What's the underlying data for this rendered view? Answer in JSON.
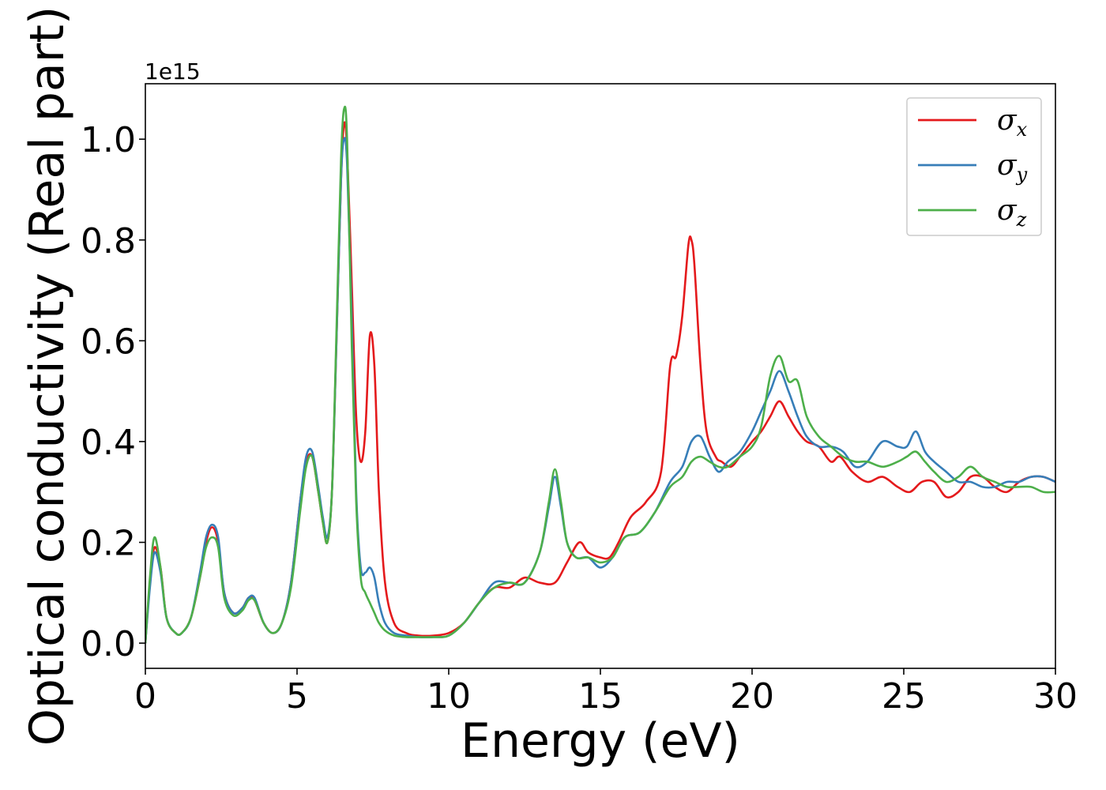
{
  "chart_data": {
    "type": "line",
    "xlabel": "Energy (eV)",
    "ylabel": "Optical conductivity (Real part)",
    "y_offset_label": "1e15",
    "xlim": [
      0,
      30
    ],
    "ylim": [
      -0.05,
      1.11
    ],
    "x_ticks": [
      0,
      5,
      10,
      15,
      20,
      25,
      30
    ],
    "y_ticks": [
      0.0,
      0.2,
      0.4,
      0.6,
      0.8,
      1.0
    ],
    "x_tick_labels": [
      "0",
      "5",
      "10",
      "15",
      "20",
      "25",
      "30"
    ],
    "y_tick_labels": [
      "0.0",
      "0.2",
      "0.4",
      "0.6",
      "0.8",
      "1.0"
    ],
    "grid": false,
    "legend_position": "top-right",
    "series": [
      {
        "name": "σx",
        "legend_symbol": "σ",
        "legend_subscript": "x",
        "color": "#e41a1c",
        "x": [
          0,
          0.15,
          0.3,
          0.5,
          0.7,
          1,
          1.2,
          1.5,
          1.8,
          2.0,
          2.2,
          2.4,
          2.6,
          2.9,
          3.2,
          3.4,
          3.6,
          3.9,
          4.2,
          4.5,
          4.8,
          5.1,
          5.3,
          5.5,
          5.7,
          5.85,
          6.0,
          6.15,
          6.3,
          6.45,
          6.55,
          6.65,
          6.8,
          6.95,
          7.1,
          7.25,
          7.4,
          7.55,
          7.7,
          7.9,
          8.2,
          8.6,
          9.0,
          9.5,
          10,
          10.5,
          11,
          11.5,
          12,
          12.5,
          13,
          13.5,
          13.9,
          14.3,
          14.6,
          15,
          15.3,
          15.6,
          16,
          16.5,
          17,
          17.3,
          17.5,
          17.7,
          17.9,
          18.0,
          18.1,
          18.3,
          18.5,
          18.8,
          19,
          19.3,
          19.6,
          20,
          20.3,
          20.6,
          20.9,
          21.2,
          21.5,
          21.8,
          22.2,
          22.6,
          22.9,
          23.3,
          23.8,
          24.3,
          24.8,
          25.2,
          25.6,
          26,
          26.4,
          26.8,
          27.2,
          27.6,
          28,
          28.4,
          28.8,
          29.2,
          29.6,
          30
        ],
        "y": [
          0,
          0.12,
          0.19,
          0.15,
          0.05,
          0.02,
          0.02,
          0.05,
          0.13,
          0.2,
          0.23,
          0.2,
          0.1,
          0.06,
          0.07,
          0.09,
          0.085,
          0.04,
          0.02,
          0.04,
          0.12,
          0.28,
          0.36,
          0.37,
          0.3,
          0.24,
          0.2,
          0.3,
          0.6,
          0.92,
          1.03,
          0.98,
          0.72,
          0.45,
          0.36,
          0.42,
          0.61,
          0.55,
          0.3,
          0.12,
          0.04,
          0.02,
          0.015,
          0.015,
          0.02,
          0.04,
          0.08,
          0.11,
          0.11,
          0.13,
          0.12,
          0.12,
          0.16,
          0.2,
          0.18,
          0.17,
          0.17,
          0.2,
          0.25,
          0.28,
          0.34,
          0.55,
          0.57,
          0.65,
          0.79,
          0.8,
          0.75,
          0.55,
          0.42,
          0.37,
          0.36,
          0.35,
          0.37,
          0.4,
          0.42,
          0.45,
          0.48,
          0.45,
          0.42,
          0.4,
          0.39,
          0.36,
          0.37,
          0.34,
          0.32,
          0.33,
          0.31,
          0.3,
          0.32,
          0.32,
          0.29,
          0.3,
          0.33,
          0.33,
          0.31,
          0.3,
          0.32,
          0.33,
          0.33,
          0.32
        ]
      },
      {
        "name": "σy",
        "legend_symbol": "σ",
        "legend_subscript": "y",
        "color": "#377eb8",
        "x": [
          0,
          0.15,
          0.3,
          0.5,
          0.7,
          1,
          1.2,
          1.5,
          1.8,
          2.0,
          2.2,
          2.4,
          2.6,
          2.9,
          3.2,
          3.4,
          3.6,
          3.9,
          4.2,
          4.5,
          4.8,
          5.1,
          5.3,
          5.5,
          5.7,
          5.85,
          6.0,
          6.15,
          6.3,
          6.45,
          6.55,
          6.65,
          6.8,
          6.95,
          7.1,
          7.25,
          7.4,
          7.55,
          7.7,
          7.9,
          8.2,
          8.6,
          9.0,
          9.5,
          10,
          10.5,
          11,
          11.5,
          12,
          12.5,
          13,
          13.3,
          13.5,
          13.7,
          13.9,
          14.2,
          14.6,
          15,
          15.4,
          15.8,
          16.3,
          16.8,
          17.3,
          17.7,
          18.0,
          18.3,
          18.6,
          18.9,
          19.2,
          19.6,
          20,
          20.3,
          20.6,
          20.9,
          21.2,
          21.5,
          21.8,
          22.2,
          22.6,
          23,
          23.4,
          23.8,
          24.3,
          24.8,
          25.1,
          25.4,
          25.7,
          26,
          26.4,
          26.8,
          27.2,
          27.6,
          28,
          28.4,
          28.8,
          29.2,
          29.6,
          30
        ],
        "y": [
          0,
          0.11,
          0.18,
          0.14,
          0.05,
          0.02,
          0.02,
          0.05,
          0.14,
          0.21,
          0.235,
          0.21,
          0.1,
          0.06,
          0.07,
          0.09,
          0.09,
          0.04,
          0.02,
          0.04,
          0.12,
          0.28,
          0.37,
          0.38,
          0.31,
          0.25,
          0.21,
          0.3,
          0.6,
          0.92,
          1.0,
          0.95,
          0.65,
          0.3,
          0.15,
          0.14,
          0.15,
          0.13,
          0.08,
          0.04,
          0.02,
          0.015,
          0.012,
          0.012,
          0.015,
          0.04,
          0.08,
          0.12,
          0.12,
          0.12,
          0.18,
          0.27,
          0.33,
          0.27,
          0.2,
          0.17,
          0.17,
          0.15,
          0.17,
          0.21,
          0.22,
          0.26,
          0.32,
          0.35,
          0.4,
          0.41,
          0.37,
          0.34,
          0.36,
          0.38,
          0.42,
          0.46,
          0.5,
          0.54,
          0.5,
          0.45,
          0.41,
          0.39,
          0.39,
          0.38,
          0.35,
          0.36,
          0.4,
          0.39,
          0.39,
          0.42,
          0.38,
          0.36,
          0.34,
          0.32,
          0.32,
          0.31,
          0.31,
          0.32,
          0.32,
          0.33,
          0.33,
          0.32
        ]
      },
      {
        "name": "σz",
        "legend_symbol": "σ",
        "legend_subscript": "z",
        "color": "#4daf4a",
        "x": [
          0,
          0.15,
          0.3,
          0.5,
          0.7,
          1,
          1.2,
          1.5,
          1.8,
          2.0,
          2.2,
          2.4,
          2.6,
          2.9,
          3.2,
          3.4,
          3.6,
          3.9,
          4.2,
          4.5,
          4.8,
          5.1,
          5.3,
          5.5,
          5.7,
          5.85,
          6.0,
          6.15,
          6.3,
          6.45,
          6.55,
          6.65,
          6.8,
          6.95,
          7.1,
          7.25,
          7.4,
          7.55,
          7.7,
          7.9,
          8.2,
          8.6,
          9.0,
          9.5,
          10,
          10.5,
          11,
          11.5,
          12,
          12.5,
          13,
          13.3,
          13.5,
          13.7,
          13.9,
          14.2,
          14.6,
          15,
          15.4,
          15.8,
          16.3,
          16.8,
          17.3,
          17.7,
          18.0,
          18.3,
          18.6,
          18.9,
          19.2,
          19.6,
          20,
          20.3,
          20.6,
          20.9,
          21.2,
          21.5,
          21.8,
          22.2,
          22.6,
          23,
          23.4,
          23.8,
          24.3,
          24.8,
          25.1,
          25.4,
          25.7,
          26,
          26.4,
          26.8,
          27.2,
          27.6,
          28,
          28.4,
          28.8,
          29.2,
          29.6,
          30
        ],
        "y": [
          0,
          0.13,
          0.21,
          0.15,
          0.05,
          0.02,
          0.02,
          0.05,
          0.13,
          0.19,
          0.21,
          0.19,
          0.09,
          0.055,
          0.065,
          0.085,
          0.085,
          0.04,
          0.02,
          0.04,
          0.11,
          0.26,
          0.35,
          0.37,
          0.3,
          0.24,
          0.2,
          0.3,
          0.62,
          0.96,
          1.06,
          1.0,
          0.6,
          0.28,
          0.13,
          0.1,
          0.08,
          0.06,
          0.04,
          0.025,
          0.015,
          0.012,
          0.012,
          0.012,
          0.015,
          0.04,
          0.08,
          0.11,
          0.12,
          0.12,
          0.18,
          0.28,
          0.345,
          0.28,
          0.2,
          0.17,
          0.17,
          0.16,
          0.17,
          0.21,
          0.22,
          0.26,
          0.31,
          0.33,
          0.36,
          0.37,
          0.36,
          0.35,
          0.35,
          0.37,
          0.39,
          0.43,
          0.53,
          0.57,
          0.52,
          0.52,
          0.45,
          0.41,
          0.39,
          0.37,
          0.36,
          0.36,
          0.35,
          0.36,
          0.37,
          0.38,
          0.36,
          0.34,
          0.32,
          0.33,
          0.35,
          0.33,
          0.32,
          0.31,
          0.31,
          0.31,
          0.3,
          0.3
        ]
      }
    ]
  },
  "colors": {
    "axis": "#000000",
    "legend_border": "#cccccc",
    "background": "#ffffff"
  }
}
